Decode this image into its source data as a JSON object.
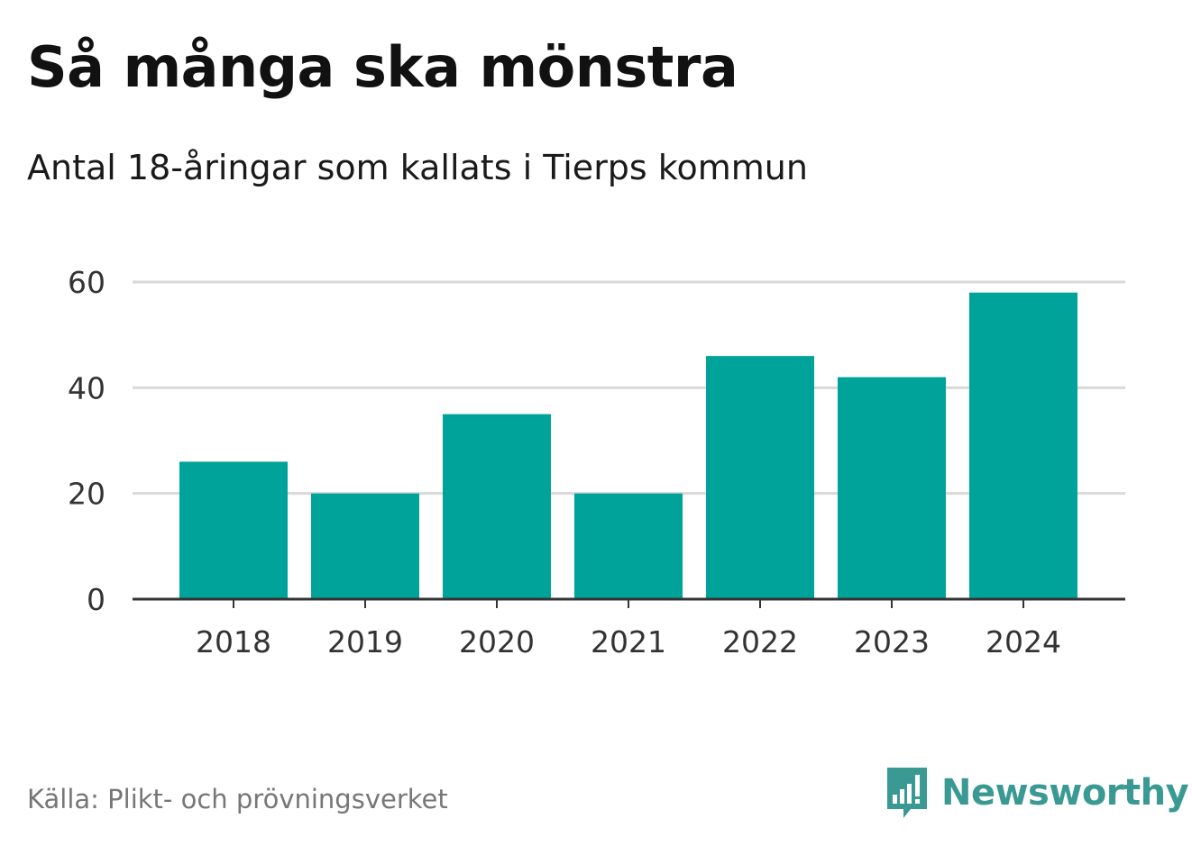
{
  "title": "Så många ska mönstra",
  "subtitle": "Antal 18-åringar som kallats i Tierps kommun",
  "source": "Källa: Plikt- och prövningsverket",
  "brand": {
    "name": "Newsworthy",
    "icon": "newsworthy-logo-icon"
  },
  "colors": {
    "bar": "#00a39a",
    "grid": "#d9d9d9",
    "axis": "#333333",
    "tick_text": "#333333",
    "brand": "#3a9a93"
  },
  "chart_data": {
    "type": "bar",
    "title": "Så många ska mönstra",
    "subtitle": "Antal 18-åringar som kallats i Tierps kommun",
    "xlabel": "",
    "ylabel": "",
    "categories": [
      "2018",
      "2019",
      "2020",
      "2021",
      "2022",
      "2023",
      "2024"
    ],
    "values": [
      26,
      20,
      35,
      20,
      46,
      42,
      58
    ],
    "ylim": [
      0,
      60
    ],
    "yticks": [
      0,
      20,
      40,
      60
    ],
    "ytick_labels": [
      "0",
      "20",
      "40",
      "60"
    ],
    "grid": true,
    "legend": "none"
  }
}
